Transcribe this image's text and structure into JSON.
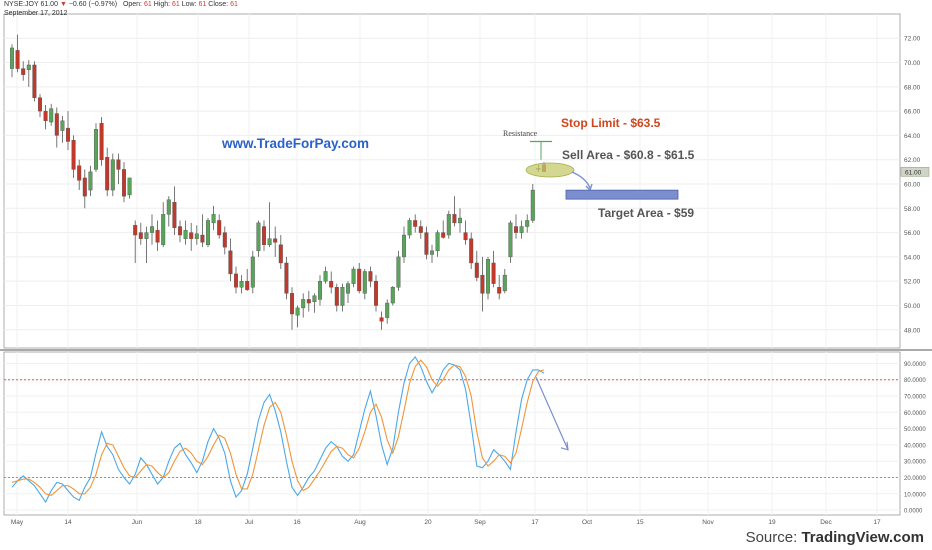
{
  "header": {
    "symbol": "NYSE:JOY",
    "last": "61.00",
    "arrow": "▼",
    "change": "−0.60 (−0.97%)",
    "open_label": "Open:",
    "open": "61",
    "high_label": "High:",
    "high": "61",
    "low_label": "Low:",
    "low": "61",
    "close_label": "Close:",
    "close": "61",
    "date": "September 17, 2012"
  },
  "source": {
    "label": "Source:",
    "name": "TradingView.com"
  },
  "colors": {
    "up": "#5aa35a",
    "down": "#c0392b",
    "stoch_k": "#4aa8e8",
    "stoch_d": "#f0953a",
    "brand": "#2a62c8",
    "stop": "#d0451b",
    "target_box": "#7b8fcf",
    "sell_ellipse": "#c5c96a",
    "overbought": "#e05555",
    "oversold": "#55c355"
  },
  "annotations": {
    "website": "www.TradeForPay.com",
    "resistance": "Resistance",
    "stop_limit": "Stop Limit - $63.5",
    "sell_area": "Sell Area - $60.8 - $61.5",
    "target_area": "Target Area - $59",
    "last_price_tag": "61.00"
  },
  "chart_data": [
    {
      "type": "candlestick",
      "title": "NYSE:JOY",
      "x_ticks": [
        "May",
        "14",
        "Jun",
        "18",
        "Jul",
        "16",
        "Aug",
        "20",
        "Sep",
        "17",
        "Oct",
        "15",
        "Nov",
        "19",
        "Dec",
        "17"
      ],
      "y_ticks": [
        "48.00",
        "50.00",
        "52.00",
        "54.00",
        "56.00",
        "58.00",
        "60.00",
        "62.00",
        "64.00",
        "66.00",
        "68.00",
        "70.00",
        "72.00"
      ],
      "ylim": [
        46.5,
        73.5
      ],
      "grid": true,
      "ohlc": [
        [
          69.5,
          71.5,
          68.8,
          71.2
        ],
        [
          71.0,
          72.3,
          69.2,
          69.5
        ],
        [
          69.5,
          70.1,
          68.5,
          69.0
        ],
        [
          69.4,
          70.2,
          68.0,
          69.8
        ],
        [
          69.8,
          70.1,
          66.8,
          67.1
        ],
        [
          67.1,
          67.4,
          65.5,
          66.0
        ],
        [
          66.0,
          66.5,
          64.5,
          65.2
        ],
        [
          65.1,
          66.6,
          64.8,
          66.2
        ],
        [
          65.8,
          66.3,
          63.0,
          64.0
        ],
        [
          64.4,
          65.6,
          63.4,
          65.2
        ],
        [
          64.6,
          66.0,
          62.8,
          63.5
        ],
        [
          63.6,
          64.0,
          60.5,
          61.2
        ],
        [
          61.5,
          62.0,
          59.5,
          60.3
        ],
        [
          60.5,
          61.2,
          58.0,
          59.0
        ],
        [
          59.5,
          61.5,
          59.0,
          61.0
        ],
        [
          61.2,
          65.0,
          61.0,
          64.5
        ],
        [
          65.0,
          65.5,
          61.5,
          62.0
        ],
        [
          62.2,
          63.0,
          59.0,
          59.5
        ],
        [
          59.5,
          62.5,
          59.0,
          62.0
        ],
        [
          62.0,
          62.5,
          60.0,
          61.2
        ],
        [
          61.2,
          61.8,
          58.5,
          59.0
        ],
        [
          59.1,
          60.5,
          58.8,
          60.5
        ],
        [
          56.6,
          57.0,
          53.5,
          55.8
        ],
        [
          56.0,
          56.8,
          55.0,
          55.5
        ],
        [
          55.5,
          56.5,
          53.5,
          56.0
        ],
        [
          56.0,
          57.5,
          55.0,
          56.5
        ],
        [
          56.2,
          57.0,
          54.5,
          55.2
        ],
        [
          55.0,
          58.5,
          54.8,
          57.5
        ],
        [
          57.5,
          59.0,
          56.5,
          58.7
        ],
        [
          58.5,
          59.8,
          55.8,
          56.4
        ],
        [
          56.5,
          57.0,
          55.2,
          55.8
        ],
        [
          55.5,
          57.0,
          55.0,
          56.2
        ],
        [
          56.0,
          56.8,
          54.5,
          55.5
        ],
        [
          55.5,
          56.6,
          55.0,
          55.9
        ],
        [
          55.8,
          57.5,
          54.8,
          55.2
        ],
        [
          55.0,
          57.2,
          54.8,
          57.0
        ],
        [
          56.8,
          58.2,
          56.2,
          57.5
        ],
        [
          57.0,
          57.5,
          55.5,
          55.8
        ],
        [
          56.0,
          56.5,
          54.2,
          54.8
        ],
        [
          54.5,
          55.5,
          52.0,
          52.6
        ],
        [
          52.6,
          53.2,
          51.0,
          51.5
        ],
        [
          51.5,
          52.5,
          51.0,
          52.0
        ],
        [
          52.0,
          53.0,
          51.2,
          51.3
        ],
        [
          51.5,
          54.5,
          51.0,
          54.0
        ],
        [
          54.5,
          57.0,
          54.0,
          56.8
        ],
        [
          56.5,
          57.0,
          54.5,
          55.0
        ],
        [
          55.0,
          58.5,
          54.8,
          55.5
        ],
        [
          55.5,
          56.5,
          54.0,
          55.2
        ],
        [
          55.0,
          55.8,
          53.0,
          53.5
        ],
        [
          53.5,
          54.0,
          50.5,
          51.0
        ],
        [
          51.0,
          51.5,
          48.0,
          49.3
        ],
        [
          49.2,
          50.0,
          48.2,
          49.8
        ],
        [
          49.8,
          51.0,
          49.0,
          50.5
        ],
        [
          50.5,
          51.2,
          49.5,
          50.2
        ],
        [
          50.3,
          51.0,
          49.4,
          50.8
        ],
        [
          50.5,
          52.5,
          50.0,
          52.0
        ],
        [
          52.0,
          53.2,
          51.8,
          52.8
        ],
        [
          52.0,
          52.8,
          51.0,
          51.5
        ],
        [
          51.5,
          51.8,
          49.5,
          50.0
        ],
        [
          50.0,
          51.8,
          49.5,
          51.5
        ],
        [
          51.0,
          52.0,
          50.2,
          51.8
        ],
        [
          51.8,
          53.2,
          51.5,
          53.0
        ],
        [
          53.0,
          53.5,
          51.0,
          51.2
        ],
        [
          51.0,
          53.0,
          50.5,
          52.8
        ],
        [
          52.8,
          53.2,
          51.5,
          52.0
        ],
        [
          52.0,
          52.5,
          49.5,
          50.0
        ],
        [
          49.0,
          49.5,
          48.0,
          48.7
        ],
        [
          49.0,
          50.5,
          48.5,
          50.2
        ],
        [
          50.2,
          51.6,
          50.0,
          51.5
        ],
        [
          51.5,
          54.5,
          51.2,
          54.0
        ],
        [
          54.0,
          56.5,
          53.5,
          55.8
        ],
        [
          55.8,
          57.2,
          55.5,
          57.0
        ],
        [
          57.0,
          57.5,
          56.0,
          56.5
        ],
        [
          56.5,
          57.0,
          55.5,
          56.0
        ],
        [
          56.0,
          56.5,
          53.8,
          54.2
        ],
        [
          54.2,
          55.0,
          53.5,
          54.5
        ],
        [
          54.5,
          56.2,
          54.0,
          56.0
        ],
        [
          56.0,
          57.0,
          55.5,
          55.6
        ],
        [
          55.8,
          57.8,
          55.5,
          57.5
        ],
        [
          57.5,
          59.0,
          56.5,
          56.8
        ],
        [
          56.8,
          58.0,
          56.0,
          57.2
        ],
        [
          56.0,
          57.0,
          55.0,
          55.4
        ],
        [
          55.5,
          56.0,
          53.0,
          53.5
        ],
        [
          53.5,
          54.5,
          52.0,
          52.3
        ],
        [
          52.5,
          54.0,
          49.5,
          51.0
        ],
        [
          51.0,
          54.0,
          50.5,
          53.8
        ],
        [
          53.5,
          54.5,
          51.5,
          51.8
        ],
        [
          51.5,
          52.5,
          50.5,
          51.0
        ],
        [
          51.2,
          53.0,
          51.0,
          52.5
        ],
        [
          54.0,
          57.0,
          53.5,
          56.8
        ],
        [
          56.5,
          57.5,
          55.5,
          56.0
        ],
        [
          56.0,
          57.0,
          55.5,
          56.5
        ],
        [
          56.5,
          57.5,
          56.0,
          57.0
        ],
        [
          57.0,
          60.0,
          56.8,
          59.5
        ],
        [
          61.2,
          61.6,
          61.0,
          61.3
        ],
        [
          61.6,
          61.8,
          61.0,
          61.0
        ]
      ],
      "resistance_level": 63.5,
      "sell_area": [
        60.8,
        61.5
      ],
      "target_level": 59,
      "last_price": 61.0
    },
    {
      "type": "line",
      "title": "",
      "y_ticks": [
        "0.0000",
        "10.0000",
        "20.0000",
        "30.0000",
        "40.0000",
        "50.0000",
        "60.0000",
        "70.0000",
        "80.0000",
        "90.0000"
      ],
      "ylim": [
        -3,
        97
      ],
      "overbought": 80,
      "oversold": 20,
      "series": [
        {
          "values": [
            14,
            18,
            21,
            18,
            15,
            10,
            5,
            12,
            17,
            16,
            12,
            8,
            6,
            14,
            20,
            35,
            48,
            39,
            34,
            25,
            20,
            16,
            22,
            32,
            28,
            22,
            16,
            20,
            30,
            38,
            41,
            34,
            29,
            23,
            30,
            42,
            50,
            44,
            35,
            18,
            8,
            12,
            22,
            38,
            55,
            66,
            71,
            61,
            48,
            30,
            14,
            9,
            14,
            20,
            24,
            31,
            38,
            42,
            39,
            33,
            30,
            34,
            48,
            62,
            73,
            58,
            40,
            28,
            38,
            60,
            78,
            90,
            94,
            88,
            79,
            72,
            78,
            86,
            90,
            89,
            86,
            74,
            52,
            27,
            26,
            30,
            37,
            34,
            30,
            25,
            48,
            68,
            80,
            86,
            86,
            84
          ]
        },
        {
          "values": [
            17,
            18,
            19,
            19,
            17,
            14,
            10,
            9,
            12,
            15,
            15,
            13,
            10,
            10,
            14,
            22,
            34,
            41,
            40,
            33,
            26,
            21,
            20,
            24,
            28,
            27,
            23,
            20,
            23,
            30,
            36,
            38,
            35,
            30,
            28,
            33,
            40,
            46,
            44,
            35,
            22,
            13,
            13,
            22,
            37,
            52,
            63,
            66,
            60,
            46,
            30,
            18,
            12,
            14,
            19,
            24,
            30,
            36,
            39,
            38,
            34,
            32,
            38,
            48,
            60,
            65,
            57,
            43,
            35,
            45,
            61,
            78,
            88,
            92,
            88,
            80,
            76,
            80,
            86,
            89,
            88,
            82,
            70,
            48,
            32,
            27,
            30,
            34,
            33,
            29,
            35,
            50,
            66,
            79,
            85,
            86
          ]
        }
      ]
    }
  ]
}
